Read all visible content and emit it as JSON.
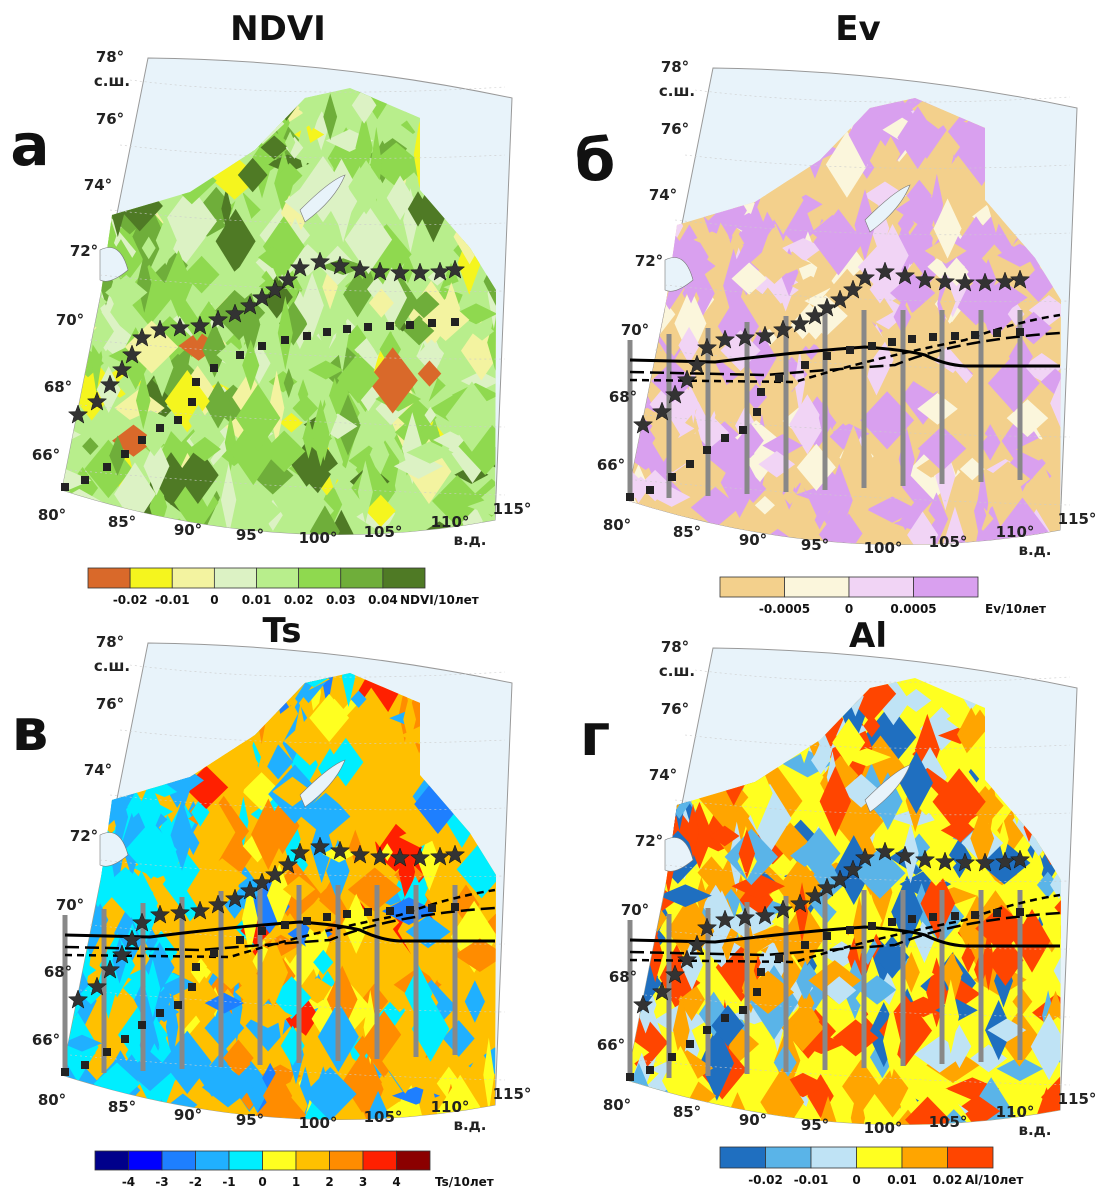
{
  "panels": [
    {
      "letter": "а",
      "title": "NDVI",
      "lat_labels": [
        "78°",
        "с.ш.",
        "76°",
        "74°",
        "72°",
        "70°",
        "68°",
        "66°"
      ],
      "lon_labels": [
        "80°",
        "85°",
        "90°",
        "95°",
        "100°",
        "105°",
        "110°",
        "115°",
        "в.д."
      ],
      "legend": {
        "colors": [
          "#d9692a",
          "#f5f51e",
          "#f3f3a0",
          "#dcf2c4",
          "#b8ee8c",
          "#8fd94f",
          "#6fae3a",
          "#4f7a25"
        ],
        "labels": [
          "-0.02",
          "-0.01",
          "0",
          "0.01",
          "0.02",
          "0.03",
          "0.04"
        ],
        "unit": "NDVI/10лет"
      }
    },
    {
      "letter": "б",
      "title": "Ev",
      "lat_labels": [
        "78°",
        "с.ш.",
        "76°",
        "74°",
        "72°",
        "70°",
        "68°",
        "66°"
      ],
      "lon_labels": [
        "80°",
        "85°",
        "90°",
        "95°",
        "100°",
        "105°",
        "110°",
        "115°",
        "в.д."
      ],
      "legend": {
        "colors": [
          "#f3d08c",
          "#fbf6dc",
          "#f1d4f5",
          "#d9a0ef"
        ],
        "labels": [
          "-0.0005",
          "0",
          "0.0005"
        ],
        "unit": "Ev/10лет"
      }
    },
    {
      "letter": "в",
      "title": "Ts",
      "lat_labels": [
        "78°",
        "с.ш.",
        "76°",
        "74°",
        "72°",
        "70°",
        "68°",
        "66°"
      ],
      "lon_labels": [
        "80°",
        "85°",
        "90°",
        "95°",
        "100°",
        "105°",
        "110°",
        "115°",
        "в.д."
      ],
      "legend": {
        "colors": [
          "#00008b",
          "#0000ff",
          "#1e7fff",
          "#20b0ff",
          "#00eeff",
          "#ffff20",
          "#ffc000",
          "#ff8c00",
          "#ff2000",
          "#8b0000"
        ],
        "labels": [
          "-4",
          "-3",
          "-2",
          "-1",
          "0",
          "1",
          "2",
          "3",
          "4"
        ],
        "unit": "Ts/10лет"
      }
    },
    {
      "letter": "г",
      "title": "Al",
      "lat_labels": [
        "78°",
        "с.ш.",
        "76°",
        "74°",
        "72°",
        "70°",
        "68°",
        "66°"
      ],
      "lon_labels": [
        "80°",
        "85°",
        "90°",
        "95°",
        "100°",
        "105°",
        "110°",
        "115°",
        "в.д."
      ],
      "legend": {
        "colors": [
          "#1f6fc0",
          "#5ab4e8",
          "#bfe3f5",
          "#ffff20",
          "#ffa500",
          "#ff4500"
        ],
        "labels": [
          "-0.02",
          "-0.01",
          "0",
          "0.01",
          "0.02"
        ],
        "unit": "Al/10лет"
      }
    }
  ]
}
